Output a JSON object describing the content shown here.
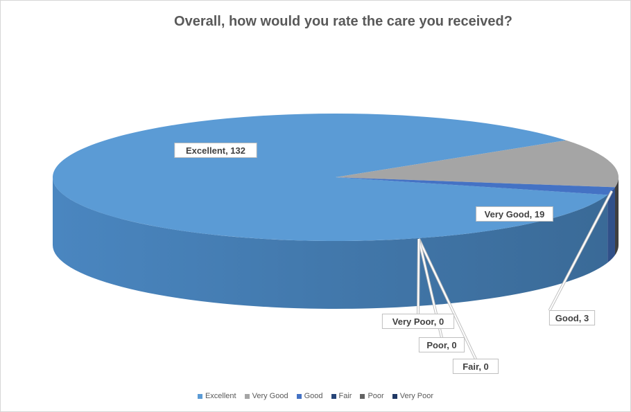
{
  "chart_data": {
    "type": "pie",
    "title": "Overall, how would you rate the care you received?",
    "categories": [
      "Excellent",
      "Very Good",
      "Good",
      "Fair",
      "Poor",
      "Very Poor"
    ],
    "values": [
      132,
      19,
      3,
      0,
      0,
      0
    ],
    "colors": [
      "#5b9bd5",
      "#a5a5a5",
      "#4472c4",
      "#264478",
      "#636363",
      "#1f3864"
    ],
    "data_labels": [
      "Excellent, 132",
      "Very Good, 19",
      "Good, 3",
      "Fair, 0",
      "Poor, 0",
      "Very Poor, 0"
    ],
    "legend_position": "bottom"
  }
}
